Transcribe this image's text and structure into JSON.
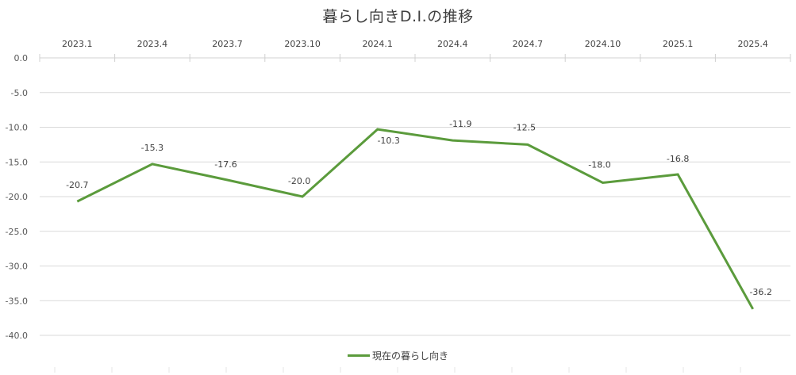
{
  "chart_data": {
    "type": "line",
    "title": "暮らし向きD.I.の推移",
    "xlabel": "",
    "ylabel": "",
    "categories": [
      "2023.1",
      "2023.4",
      "2023.7",
      "2023.10",
      "2024.1",
      "2024.4",
      "2024.7",
      "2024.10",
      "2025.1",
      "2025.4"
    ],
    "series": [
      {
        "name": "現在の暮らし向き",
        "color": "#5b9b3c",
        "values": [
          -20.7,
          -15.3,
          -17.6,
          -20.0,
          -10.3,
          -11.9,
          -12.5,
          -18.0,
          -16.8,
          -36.2
        ],
        "data_labels": [
          "-20.7",
          "-15.3",
          "-17.6",
          "-20.0",
          "-10.3",
          "-11.9",
          "-12.5",
          "-18.0",
          "-16.8",
          "-36.2"
        ]
      }
    ],
    "ylim": [
      -40,
      0
    ],
    "y_ticks": [
      "0.0",
      "-5.0",
      "-10.0",
      "-15.0",
      "-20.0",
      "-25.0",
      "-30.0",
      "-35.0",
      "-40.0"
    ],
    "x_axis_position": "top",
    "grid": true,
    "legend_position": "bottom"
  }
}
